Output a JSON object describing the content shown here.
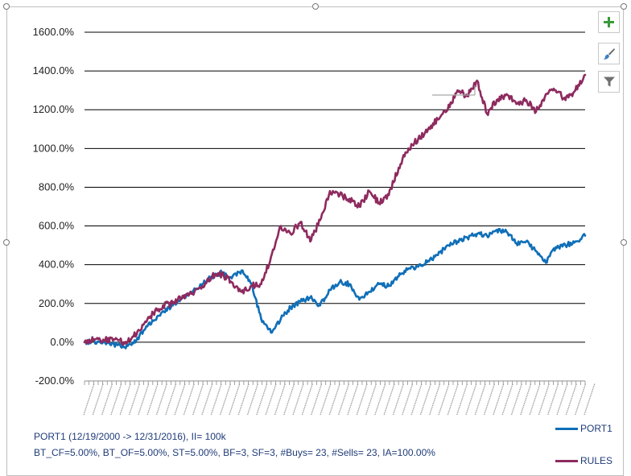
{
  "chart_data": {
    "type": "line",
    "title": "",
    "xlabel": "",
    "ylabel": "",
    "y_unit": "%",
    "ylim": [
      -200,
      1600
    ],
    "y_ticks": [
      -200,
      0,
      200,
      400,
      600,
      800,
      1000,
      1200,
      1400,
      1600
    ],
    "y_tick_labels": [
      "-200.0%",
      "0.0%",
      "200.0%",
      "400.0%",
      "600.0%",
      "800.0%",
      "1000.0%",
      "1200.0%",
      "1400.0%",
      "1600.0%"
    ],
    "x_date_range": [
      "12/19/2000",
      "12/31/2016"
    ],
    "x_tick_labels_legible": false,
    "grid": "horizontal",
    "legend_position": "bottom-right",
    "x": [
      "2000-12",
      "2001-06",
      "2002-01",
      "2002-06",
      "2002-10",
      "2003-03",
      "2003-09",
      "2004-03",
      "2004-09",
      "2005-03",
      "2005-09",
      "2006-03",
      "2006-09",
      "2007-03",
      "2007-07",
      "2007-10",
      "2008-01",
      "2008-06",
      "2008-09",
      "2008-12",
      "2009-03",
      "2009-06",
      "2009-09",
      "2009-12",
      "2010-04",
      "2010-07",
      "2010-10",
      "2011-02",
      "2011-05",
      "2011-08",
      "2011-11",
      "2012-02",
      "2012-06",
      "2012-09",
      "2012-12",
      "2013-04",
      "2013-07",
      "2013-10",
      "2014-01",
      "2014-04",
      "2014-07",
      "2014-10",
      "2015-01",
      "2015-04",
      "2015-07",
      "2015-09",
      "2015-12",
      "2016-02",
      "2016-05",
      "2016-08",
      "2016-10",
      "2016-12"
    ],
    "series": [
      {
        "name": "PORT1",
        "color": "#0f6fb8",
        "values": [
          0,
          5,
          0,
          -10,
          -25,
          -5,
          60,
          110,
          160,
          190,
          230,
          260,
          300,
          340,
          360,
          330,
          370,
          300,
          120,
          50,
          120,
          180,
          210,
          230,
          190,
          270,
          310,
          300,
          220,
          260,
          300,
          290,
          340,
          380,
          390,
          420,
          450,
          500,
          520,
          540,
          560,
          550,
          580,
          570,
          510,
          520,
          470,
          410,
          490,
          500,
          520,
          550
        ]
      },
      {
        "name": "RULES",
        "color": "#8e2a5e",
        "values": [
          0,
          15,
          10,
          15,
          0,
          30,
          90,
          150,
          190,
          200,
          240,
          250,
          290,
          340,
          350,
          310,
          260,
          290,
          300,
          440,
          600,
          560,
          620,
          520,
          630,
          780,
          760,
          740,
          700,
          780,
          720,
          760,
          900,
          1000,
          1050,
          1100,
          1150,
          1200,
          1300,
          1270,
          1350,
          1180,
          1250,
          1280,
          1230,
          1250,
          1190,
          1280,
          1300,
          1250,
          1300,
          1380
        ]
      }
    ]
  },
  "info": {
    "line1": "PORT1 (12/19/2000 -> 12/31/2016), II= 100k",
    "line2": "BT_CF=5.00%, BT_OF=5.00%, ST=5.00%, BF=3, SF=3, #Buys= 23, #Sells= 23, IA=100.00%"
  },
  "toolbar": {
    "icons": [
      "plus-icon",
      "brush-icon",
      "filter-icon"
    ],
    "accent": "#3a9a3a"
  }
}
